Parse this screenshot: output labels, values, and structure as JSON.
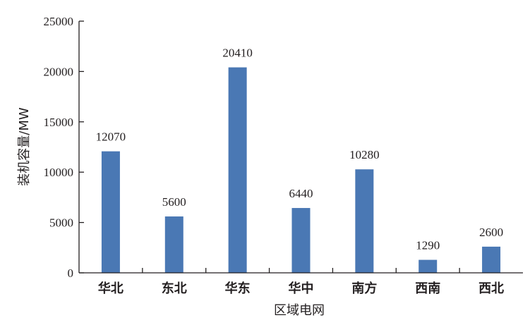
{
  "chart_data": {
    "type": "bar",
    "title": "",
    "xlabel": "区域电网",
    "ylabel": "装机容量/MW",
    "categories": [
      "华北",
      "东北",
      "华东",
      "华中",
      "南方",
      "西南",
      "西北"
    ],
    "values": [
      12070,
      5600,
      20410,
      6440,
      10280,
      1290,
      2600
    ],
    "value_labels": [
      "12070",
      "5600",
      "20410",
      "6440",
      "10280",
      "1290",
      "2600"
    ],
    "ylim": [
      0,
      25000
    ],
    "yticks": [
      0,
      5000,
      10000,
      15000,
      20000,
      25000
    ],
    "ytick_labels": [
      "0",
      "5000",
      "10000",
      "15000",
      "20000",
      "25000"
    ],
    "grid": false,
    "bar_color": "#4a78b4",
    "axis_color": "#231f20"
  }
}
